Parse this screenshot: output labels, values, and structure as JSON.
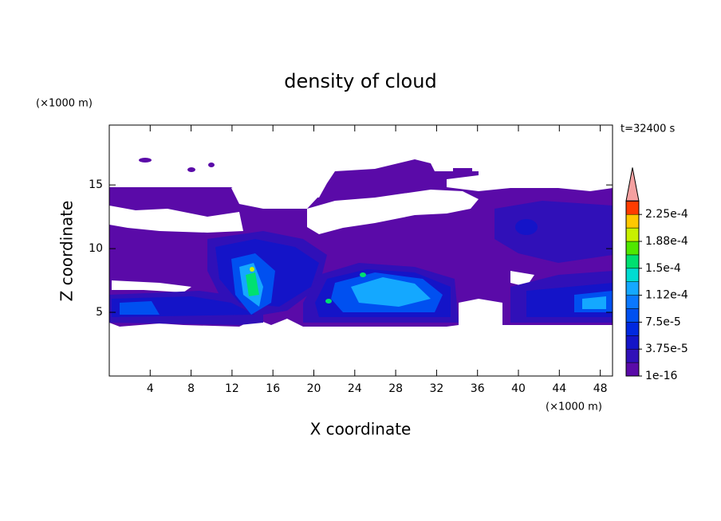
{
  "chart_data": {
    "type": "contour",
    "title": "density of cloud",
    "x_label": "X coordinate",
    "y_label": "Z coordinate",
    "x_unit": "(×1000 m)",
    "y_unit": "(×1000 m)",
    "time_label": "t=32400 s",
    "xlim": [
      0,
      49.2
    ],
    "ylim": [
      0,
      19.7
    ],
    "xticks": [
      4,
      8,
      12,
      16,
      20,
      24,
      28,
      32,
      36,
      40,
      44,
      48
    ],
    "yticks": [
      5,
      10,
      15
    ],
    "colorbar": {
      "levels": [
        1e-16,
        1.875e-05,
        3.75e-05,
        5.625e-05,
        7.5e-05,
        9.375e-05,
        0.0001125,
        0.00013125,
        0.00015,
        0.00016875,
        0.0001875,
        0.00020625,
        0.000225
      ],
      "colors": [
        "#5a0aa8",
        "#3010b8",
        "#1414c8",
        "#0028e0",
        "#0050f0",
        "#0a78ff",
        "#14a8ff",
        "#00dcd2",
        "#00e070",
        "#50e800",
        "#c8f000",
        "#ffc800",
        "#ff3c00"
      ],
      "over_color": "#f4a0a0",
      "ticks": [
        {
          "value": 1e-16,
          "label": "1e-16"
        },
        {
          "value": 3.75e-05,
          "label": "3.75e-5"
        },
        {
          "value": 7.5e-05,
          "label": "7.5e-5"
        },
        {
          "value": 0.0001125,
          "label": "1.12e-4"
        },
        {
          "value": 0.00015,
          "label": "1.5e-4"
        },
        {
          "value": 0.0001875,
          "label": "1.88e-4"
        },
        {
          "value": 0.000225,
          "label": "2.25e-4"
        }
      ]
    }
  }
}
